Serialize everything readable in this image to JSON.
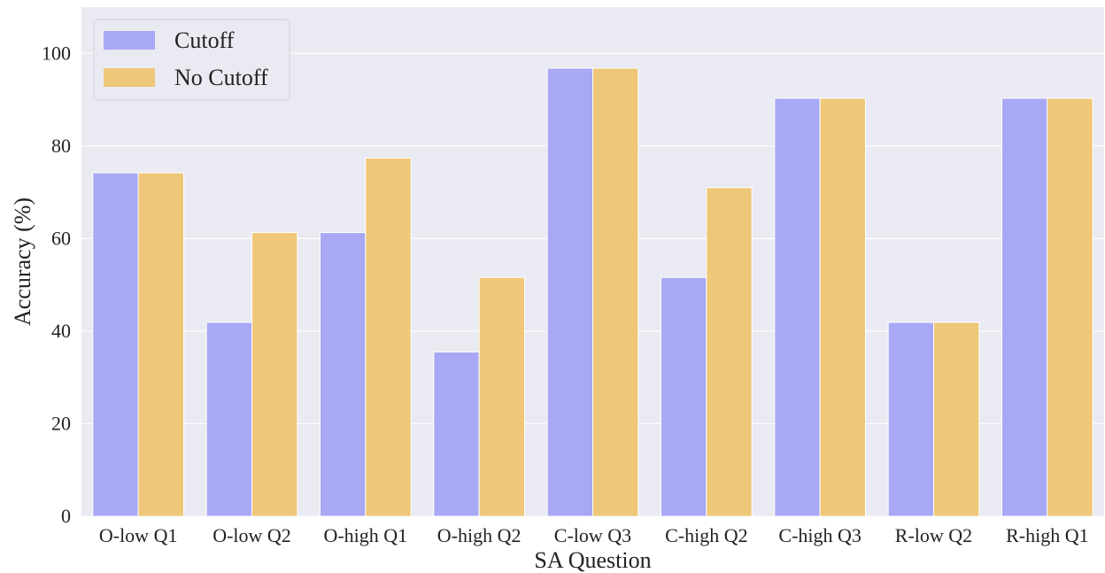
{
  "chart_data": {
    "type": "bar",
    "xlabel": "SA Question",
    "ylabel": "Accuracy (%)",
    "ylim": [
      0,
      110
    ],
    "yticks": [
      0,
      20,
      40,
      60,
      80,
      100
    ],
    "grid": true,
    "legend_position": "top-left",
    "categories": [
      "O-low Q1",
      "O-low Q2",
      "O-high Q1",
      "O-high Q2",
      "C-low Q3",
      "C-high Q2",
      "C-high Q3",
      "R-low Q2",
      "R-high Q1"
    ],
    "series": [
      {
        "name": "Cutoff",
        "color": "#a8a8f4",
        "values": [
          74.2,
          41.9,
          61.3,
          35.5,
          96.8,
          51.6,
          90.3,
          41.9,
          90.3
        ]
      },
      {
        "name": "No Cutoff",
        "color": "#eec778",
        "values": [
          74.2,
          61.3,
          77.4,
          51.6,
          96.8,
          71.0,
          90.3,
          41.9,
          90.3
        ]
      }
    ]
  }
}
